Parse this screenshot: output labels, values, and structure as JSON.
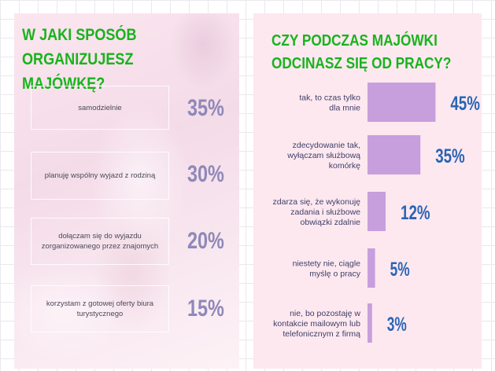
{
  "left": {
    "title_line1": "W JAKI SPOSÓB ORGANIZUJESZ",
    "title_line2": "MAJÓWKĘ?",
    "options": [
      {
        "label": "samodzielnie",
        "percent": "35%"
      },
      {
        "label": "planuję wspólny wyjazd z rodziną",
        "percent": "30%"
      },
      {
        "label": "dołączam się do wyjazdu zorganizowanego przez znajomych",
        "percent": "20%"
      },
      {
        "label": "korzystam z gotowej oferty biura turystycznego",
        "percent": "15%"
      }
    ]
  },
  "right": {
    "title_line1": "CZY PODCZAS MAJÓWKI",
    "title_line2": "ODCINASZ SIĘ OD PRACY?"
  },
  "chart_data": [
    {
      "type": "table",
      "title": "W JAKI SPOSÓB ORGANIZUJESZ MAJÓWKĘ?",
      "categories": [
        "samodzielnie",
        "planuję wspólny wyjazd z rodziną",
        "dołączam się do wyjazdu zorganizowanego przez znajomych",
        "korzystam z gotowej oferty biura turystycznego"
      ],
      "values": [
        35,
        30,
        20,
        15
      ]
    },
    {
      "type": "bar",
      "orientation": "horizontal",
      "title": "CZY PODCZAS MAJÓWKI ODCINASZ SIĘ OD PRACY?",
      "categories": [
        [
          "tak, to czas tylko",
          "dla mnie"
        ],
        [
          "zdecydowanie tak,",
          "wyłączam służbową",
          "komórkę"
        ],
        [
          "zdarza się, że wykonuję",
          "zadania i służbowe",
          "obwiązki zdalnie"
        ],
        [
          "niestety nie, ciągle",
          "myślę o pracy"
        ],
        [
          "nie, bo pozostaję w",
          "kontakcie mailowym lub",
          "telefonicznym z firmą"
        ]
      ],
      "values": [
        45,
        35,
        12,
        5,
        3
      ],
      "value_labels": [
        "45%",
        "35%",
        "12%",
        "5%",
        "3%"
      ],
      "bar_color": "#c79fdc",
      "value_color": "#2a64b3",
      "grid": false,
      "legend": "none"
    }
  ],
  "colors": {
    "title_green": "#19b31d",
    "left_percent": "#8f88b8",
    "bar": "#c79fdc",
    "right_percent": "#2a64b3"
  }
}
